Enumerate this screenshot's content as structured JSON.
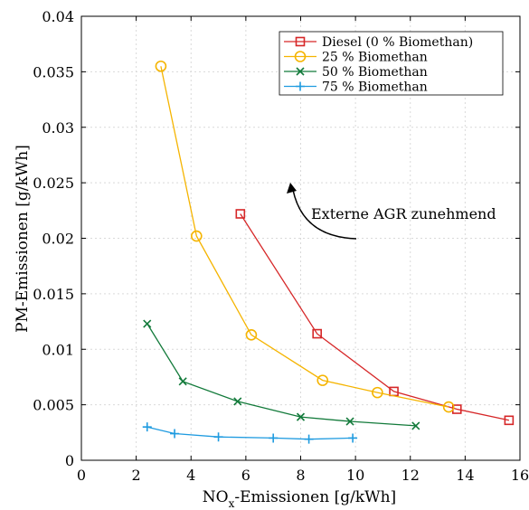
{
  "chart_data": {
    "type": "line",
    "xlabel": "NO",
    "xlabel_sub": "x",
    "xlabel_rest": "-Emissionen [g/kWh]",
    "ylabel": "PM-Emissionen [g/kWh]",
    "xlim": [
      0,
      16
    ],
    "ylim": [
      0,
      0.04
    ],
    "xticks": [
      0,
      2,
      4,
      6,
      8,
      10,
      12,
      14,
      16
    ],
    "xtick_labels": [
      "0",
      "2",
      "4",
      "6",
      "8",
      "10",
      "12",
      "14",
      "16"
    ],
    "yticks": [
      0,
      0.005,
      0.01,
      0.015,
      0.02,
      0.025,
      0.03,
      0.035,
      0.04
    ],
    "ytick_labels": [
      "0",
      "0.005",
      "0.01",
      "0.015",
      "0.02",
      "0.025",
      "0.03",
      "0.035",
      "0.04"
    ],
    "grid": true,
    "legend_position": "top-right",
    "series": [
      {
        "name": "Diesel (0 % Biomethan)",
        "color": "#d62728",
        "marker": "square",
        "points": [
          [
            5.8,
            0.0222
          ],
          [
            8.6,
            0.0114
          ],
          [
            11.4,
            0.0062
          ],
          [
            13.7,
            0.0046
          ],
          [
            15.6,
            0.0036
          ]
        ]
      },
      {
        "name": "25 % Biomethan",
        "color": "#f5b400",
        "marker": "circle",
        "points": [
          [
            2.9,
            0.0355
          ],
          [
            4.2,
            0.0202
          ],
          [
            6.2,
            0.0113
          ],
          [
            8.8,
            0.0072
          ],
          [
            10.8,
            0.0061
          ],
          [
            13.4,
            0.0048
          ]
        ]
      },
      {
        "name": "50 % Biomethan",
        "color": "#127a3a",
        "marker": "x",
        "points": [
          [
            2.4,
            0.0123
          ],
          [
            3.7,
            0.0071
          ],
          [
            5.7,
            0.0053
          ],
          [
            8.0,
            0.0039
          ],
          [
            9.8,
            0.0035
          ],
          [
            12.2,
            0.0031
          ]
        ]
      },
      {
        "name": "75 % Biomethan",
        "color": "#1f9be0",
        "marker": "plus",
        "points": [
          [
            2.4,
            0.003
          ],
          [
            3.4,
            0.0024
          ],
          [
            5.0,
            0.0021
          ],
          [
            7.0,
            0.002
          ],
          [
            8.3,
            0.0019
          ],
          [
            9.9,
            0.002
          ]
        ]
      }
    ],
    "annotation": {
      "text": "Externe AGR zunehmend"
    }
  }
}
